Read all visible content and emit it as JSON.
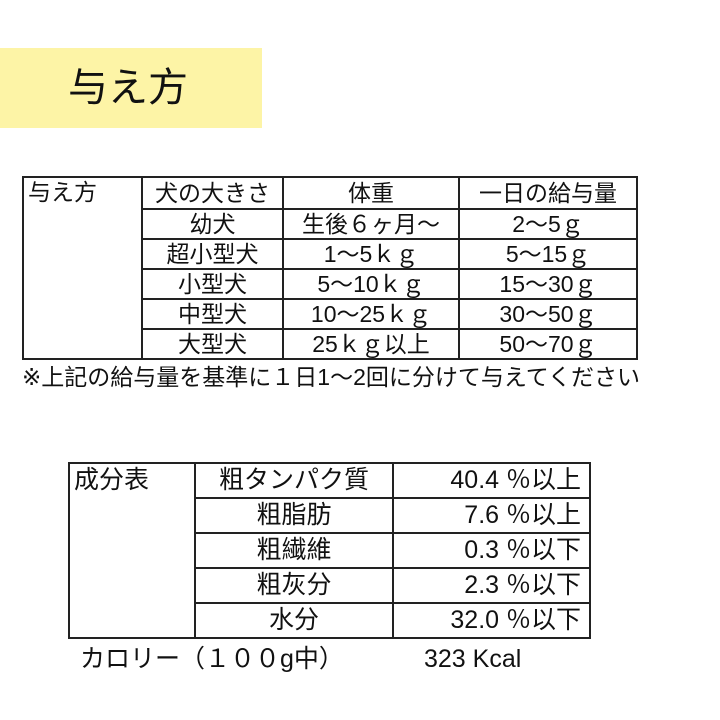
{
  "title": "与え方",
  "accent_color": "#fdf4a6",
  "feeding_table": {
    "row_header": "与え方",
    "columns": [
      "犬の大きさ",
      "体重",
      "一日の給与量"
    ],
    "rows": [
      [
        "幼犬",
        "生後６ヶ月～",
        "2～5ｇ"
      ],
      [
        "超小型犬",
        "1～5ｋｇ",
        "5～15ｇ"
      ],
      [
        "小型犬",
        "5～10ｋｇ",
        "15～30ｇ"
      ],
      [
        "中型犬",
        "10～25ｋｇ",
        "30～50ｇ"
      ],
      [
        "大型犬",
        "25ｋｇ以上",
        "50～70ｇ"
      ]
    ],
    "note": "※上記の給与量を基準に１日1～2回に分けて与えてください"
  },
  "composition_table": {
    "row_header": "成分表",
    "rows": [
      [
        "粗タンパク質",
        "40.4 ％以上"
      ],
      [
        "粗脂肪",
        "7.6 ％以上"
      ],
      [
        "粗繊維",
        "0.3 ％以下"
      ],
      [
        "粗灰分",
        "2.3 ％以下"
      ],
      [
        "水分",
        "32.0 ％以下"
      ]
    ],
    "calorie_label": "カロリー（１００g中）",
    "calorie_value": "323 Kcal"
  }
}
